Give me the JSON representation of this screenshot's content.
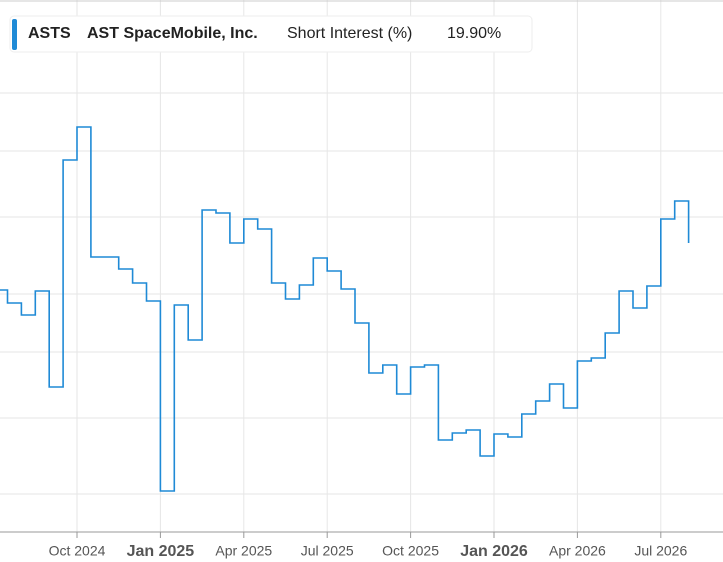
{
  "chart_data": {
    "type": "step",
    "ticker": "ASTS",
    "series": [
      {
        "name": "AST SpaceMobile, Inc.",
        "metric": "Short Interest (%)",
        "color": "#1f8ad6",
        "last_label": "19.90%",
        "values": [
          17.55,
          16.9,
          16.3,
          17.5,
          12.7,
          24.05,
          25.7,
          19.2,
          19.2,
          18.6,
          17.9,
          17.0,
          7.5,
          16.8,
          15.05,
          21.55,
          21.4,
          19.9,
          21.1,
          20.6,
          17.9,
          17.1,
          17.8,
          19.15,
          18.5,
          17.6,
          15.9,
          13.4,
          13.8,
          12.35,
          13.7,
          13.8,
          10.05,
          10.4,
          10.55,
          9.25,
          10.35,
          10.2,
          11.35,
          12.0,
          12.85,
          11.65,
          14.0,
          14.15,
          15.4,
          17.5,
          16.65,
          17.75,
          21.1,
          22.0,
          19.9
        ]
      }
    ],
    "categories": [
      null,
      null,
      null,
      null,
      null,
      null,
      "Oct 2024",
      null,
      null,
      null,
      null,
      null,
      "Jan 2025",
      null,
      null,
      null,
      null,
      null,
      "Apr 2025",
      null,
      null,
      null,
      null,
      null,
      "Jul 2025",
      null,
      null,
      null,
      null,
      null,
      "Oct 2025",
      null,
      null,
      null,
      null,
      null,
      "Jan 2026",
      null,
      null,
      null,
      null,
      null,
      "Apr 2026",
      null,
      null,
      null,
      null,
      null,
      "Jul 2026",
      null,
      null
    ],
    "ylim": [
      5.45,
      32.05
    ]
  }
}
